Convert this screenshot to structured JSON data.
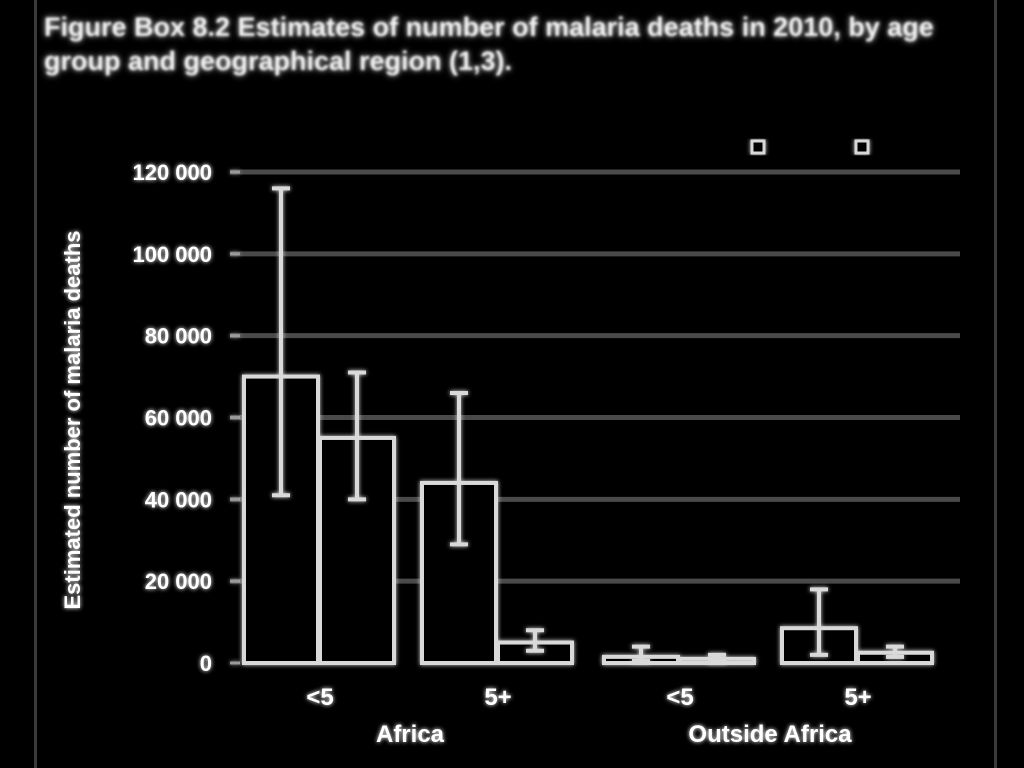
{
  "figure": {
    "title": "Figure Box 8.2 Estimates of number of malaria deaths in 2010, by age group and geographical region (1,3)."
  },
  "chart_data": {
    "type": "bar",
    "title": "Figure Box 8.2 Estimates of number of malaria deaths in 2010, by age group and geographical region (1,3).",
    "categories": [
      "<5",
      "5+",
      "<5",
      "5+"
    ],
    "groups": [
      {
        "label": "Africa",
        "categories": [
          "<5",
          "5+"
        ]
      },
      {
        "label": "Outside Africa",
        "categories": [
          "<5",
          "5+"
        ]
      }
    ],
    "series": [
      {
        "name": "",
        "color": "#000000",
        "values": [
          70000,
          44000,
          1500,
          8500
        ],
        "error_low": [
          41000,
          29000,
          500,
          2000
        ],
        "error_high": [
          116000,
          66000,
          4000,
          18000
        ]
      },
      {
        "name": "",
        "color": "#000000",
        "values": [
          55000,
          5000,
          1000,
          2500
        ],
        "error_low": [
          40000,
          3000,
          300,
          1500
        ],
        "error_high": [
          71000,
          8000,
          2000,
          4000
        ]
      }
    ],
    "ylabel": "Estimated number of malaria deaths",
    "ylabel_right": "",
    "ylim": [
      0,
      120000
    ],
    "yticks": [
      0,
      20000,
      40000,
      60000,
      80000,
      100000,
      120000
    ],
    "ytick_labels": [
      "0",
      "20 000",
      "40 000",
      "60 000",
      "80 000",
      "100 000",
      "120 000"
    ],
    "grid": true,
    "legend_position": "top-right"
  },
  "style": {
    "bar_outline": "#d9d9d9",
    "grid_color": "#4a4a4a",
    "text_color": "#ffffff"
  }
}
